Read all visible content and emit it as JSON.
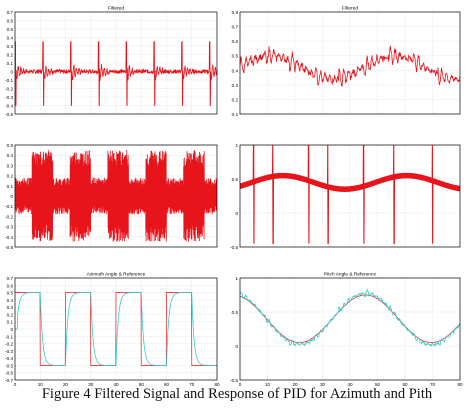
{
  "figure": {
    "caption": "Figure 4 Filtered Signal and Response of PID for Azimuth and Pith"
  },
  "colors": {
    "signal": "#e8141c",
    "reference": "#ee3030",
    "response": "#33cccc",
    "grid": "#d4d4d4",
    "frame": "#000000"
  },
  "chart_data": [
    {
      "type": "line",
      "title": "Filtered",
      "xlim": [
        0,
        80
      ],
      "ylim": [
        -0.5,
        0.7
      ],
      "yticks": [
        0.7,
        0.6,
        0.5,
        0.4,
        0.3,
        0.2,
        0.1,
        0,
        -0.1,
        -0.2,
        -0.3,
        -0.4,
        -0.5
      ],
      "ytick_labels": [
        "0.7",
        "0.6",
        "0.5",
        "0.4",
        "0.3",
        "0.2",
        "0.1",
        "0",
        "-0.1",
        "-0.2",
        "-0.3",
        "-0.4",
        "-0.5"
      ],
      "grid": true,
      "series": [
        {
          "style": "signal",
          "pattern": "spike_train",
          "baseline": 0.0,
          "peak": 0.35,
          "trough": -0.4,
          "period": 11,
          "x": [
            0,
            80
          ]
        }
      ]
    },
    {
      "type": "line",
      "title": "Filtered",
      "xlim": [
        0,
        80
      ],
      "ylim": [
        0.1,
        0.8
      ],
      "yticks": [
        0.8,
        0.7,
        0.6,
        0.5,
        0.4,
        0.3,
        0.2,
        0.1
      ],
      "ytick_labels": [
        "0.8",
        "0.7",
        "0.6",
        "0.5",
        "0.4",
        "0.3",
        "0.2",
        "0.1"
      ],
      "grid": true,
      "series": [
        {
          "style": "signal",
          "pattern": "noisy_sine",
          "mean": 0.42,
          "amplitude": 0.08,
          "period": 45,
          "noise": 0.07,
          "x": [
            0,
            80
          ]
        }
      ]
    },
    {
      "type": "line",
      "title": "",
      "xlim": [
        0,
        80
      ],
      "ylim": [
        -0.5,
        0.5
      ],
      "yticks": [
        0.5,
        0.4,
        0.3,
        0.2,
        0.1,
        0,
        -0.1,
        -0.2,
        -0.3,
        -0.4,
        -0.5
      ],
      "ytick_labels": [
        "0.5",
        "0.4",
        "0.3",
        "0.2",
        "0.1",
        "0",
        "-0.1",
        "-0.2",
        "-0.3",
        "-0.4",
        "-0.5"
      ],
      "grid": true,
      "series": [
        {
          "style": "signal",
          "pattern": "dense_oscillation",
          "center": 0.0,
          "amplitude": 0.45,
          "burst_period": 15,
          "x": [
            0,
            80
          ]
        }
      ]
    },
    {
      "type": "line",
      "title": "",
      "xlim": [
        0,
        80
      ],
      "ylim": [
        -0.5,
        1
      ],
      "yticks": [
        1,
        0.5,
        0,
        -0.5
      ],
      "ytick_labels": [
        "1",
        "0.5",
        "0",
        "-0.5"
      ],
      "grid": true,
      "series": [
        {
          "style": "signal",
          "pattern": "thick_sine_with_spikes",
          "mean": 0.45,
          "amplitude": 0.1,
          "period": 45,
          "spike_x": [
            5,
            12,
            25,
            32,
            45,
            56,
            70
          ],
          "x": [
            0,
            80
          ]
        }
      ]
    },
    {
      "type": "line",
      "title": "Azimuth Angle & Reference",
      "xlim": [
        0,
        80
      ],
      "ylim": [
        -0.7,
        0.7
      ],
      "xticks": [
        0,
        10,
        20,
        30,
        40,
        50,
        60,
        70,
        80
      ],
      "xtick_labels": [
        "0",
        "10",
        "20",
        "30",
        "40",
        "50",
        "60",
        "70",
        "80"
      ],
      "yticks": [
        0.7,
        0.6,
        0.5,
        0.4,
        0.3,
        0.2,
        0.1,
        0,
        -0.1,
        -0.2,
        -0.3,
        -0.4,
        -0.5,
        -0.6,
        -0.7
      ],
      "ytick_labels": [
        "0.7",
        "0.6",
        "0.5",
        "0.4",
        "0.3",
        "0.2",
        "0.1",
        "0",
        "-0.1",
        "-0.2",
        "-0.3",
        "-0.4",
        "-0.5",
        "-0.6",
        "-0.7"
      ],
      "grid": true,
      "series": [
        {
          "style": "reference",
          "pattern": "square_wave",
          "high": 0.5,
          "low": -0.5,
          "transitions": [
            0,
            10,
            20,
            30,
            40,
            50,
            60,
            70
          ],
          "start_high": false,
          "x": [
            0,
            80
          ]
        },
        {
          "style": "response",
          "pattern": "square_response",
          "high": 0.5,
          "low": -0.5,
          "transitions": [
            0,
            10,
            20,
            30,
            40,
            50,
            60,
            70
          ],
          "start_high": false,
          "x": [
            0,
            80
          ]
        }
      ]
    },
    {
      "type": "line",
      "title": "Pitch Angle & Reference",
      "xlim": [
        0,
        80
      ],
      "ylim": [
        -0.5,
        1
      ],
      "xticks": [
        0,
        10,
        20,
        30,
        40,
        50,
        60,
        70,
        80
      ],
      "xtick_labels": [
        "0",
        "10",
        "20",
        "30",
        "40",
        "50",
        "60",
        "70",
        "80"
      ],
      "yticks": [
        1,
        0.5,
        0,
        -0.5
      ],
      "ytick_labels": [
        "1",
        "0.5",
        "0",
        "-0.5"
      ],
      "grid": true,
      "series": [
        {
          "style": "reference",
          "pattern": "sine",
          "mean": 0.4,
          "amplitude": 0.35,
          "period": 48,
          "phase_deg": 108,
          "x": [
            0,
            80
          ]
        },
        {
          "style": "response",
          "pattern": "noisy_sine",
          "mean": 0.4,
          "amplitude": 0.38,
          "period": 48,
          "phase_deg": 108,
          "noise": 0.05,
          "x": [
            0,
            80
          ]
        }
      ]
    }
  ]
}
